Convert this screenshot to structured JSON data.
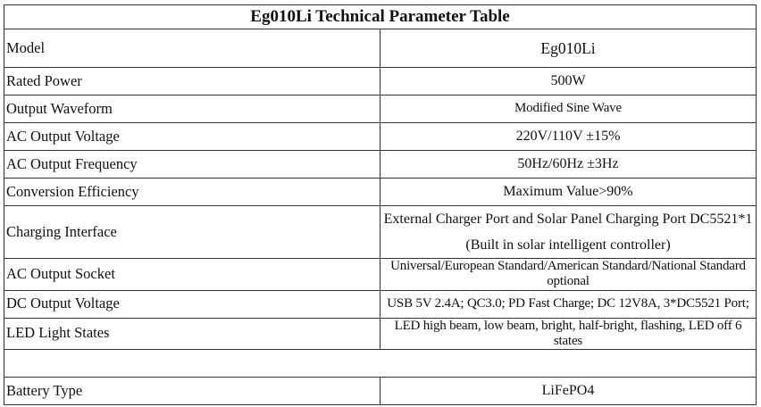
{
  "table": {
    "title": "Eg010Li Technical Parameter Table",
    "rows": [
      {
        "label": "Model",
        "value": "Eg010Li"
      },
      {
        "label": "Rated Power",
        "value": "500W"
      },
      {
        "label": "Output Waveform",
        "value": "Modified Sine Wave"
      },
      {
        "label": "AC Output Voltage",
        "value": "220V/110V ±15%"
      },
      {
        "label": "AC Output Frequency",
        "value": "50Hz/60Hz ±3Hz"
      },
      {
        "label": "Conversion Efficiency",
        "value": "Maximum Value>90%"
      },
      {
        "label": "Charging Interface",
        "value_line1": "External Charger Port and Solar Panel Charging Port DC5521*1",
        "value_line2": "(Built in solar intelligent controller)"
      },
      {
        "label": "AC Output Socket",
        "value": "Universal/European Standard/American Standard/National Standard optional"
      },
      {
        "label": "DC Output Voltage",
        "value": "USB 5V 2.4A; QC3.0; PD Fast Charge; DC 12V8A, 3*DC5521 Port;"
      },
      {
        "label": "LED Light States",
        "value": "LED high beam, low beam, bright, half-bright, flashing, LED off 6 states"
      },
      {
        "label": "",
        "value": ""
      },
      {
        "label": "Battery Type",
        "value": "LiFePO4"
      }
    ]
  }
}
